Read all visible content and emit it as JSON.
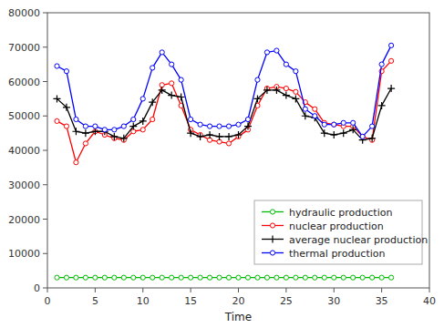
{
  "chart_data": {
    "type": "line",
    "xlabel": "Time",
    "x": [
      1,
      2,
      3,
      4,
      5,
      6,
      7,
      8,
      9,
      10,
      11,
      12,
      13,
      14,
      15,
      16,
      17,
      18,
      19,
      20,
      21,
      22,
      23,
      24,
      25,
      26,
      27,
      28,
      29,
      30,
      31,
      32,
      33,
      34,
      35,
      36
    ],
    "series": [
      {
        "name": "hydraulic production",
        "color": "#00bb00",
        "marker": "circle",
        "values": [
          3000,
          3000,
          3000,
          3000,
          3000,
          3000,
          3000,
          3000,
          3000,
          3000,
          3000,
          3000,
          3000,
          3000,
          3000,
          3000,
          3000,
          3000,
          3000,
          3000,
          3000,
          3000,
          3000,
          3000,
          3000,
          3000,
          3000,
          3000,
          3000,
          3000,
          3000,
          3000,
          3000,
          3000,
          3000,
          3000
        ]
      },
      {
        "name": "nuclear production",
        "color": "#ff0000",
        "marker": "circle",
        "values": [
          48500,
          47000,
          36500,
          42000,
          45500,
          44500,
          43500,
          43000,
          45500,
          46000,
          49000,
          59000,
          59500,
          53000,
          46000,
          44500,
          43000,
          42500,
          42000,
          44000,
          46000,
          53000,
          58000,
          58500,
          58000,
          57000,
          54000,
          52000,
          48000,
          47500,
          47000,
          47000,
          44000,
          43000,
          63000,
          66000
        ]
      },
      {
        "name": "average nuclear production",
        "color": "#000000",
        "marker": "plus",
        "values": [
          55000,
          52500,
          45500,
          45000,
          45500,
          45500,
          44000,
          43500,
          47000,
          48500,
          54000,
          57500,
          56000,
          55500,
          45000,
          44000,
          44500,
          44000,
          44000,
          44500,
          47000,
          55000,
          57500,
          57500,
          56000,
          55000,
          50000,
          49500,
          45000,
          44500,
          45000,
          46000,
          43000,
          43500,
          53000,
          58000
        ]
      },
      {
        "name": "thermal production",
        "color": "#0000ff",
        "marker": "circle",
        "values": [
          64500,
          63000,
          49000,
          47000,
          47000,
          46000,
          46000,
          47000,
          49000,
          55000,
          64000,
          68500,
          65000,
          60500,
          49000,
          47500,
          47000,
          47000,
          47000,
          47500,
          49000,
          60500,
          68500,
          69000,
          65000,
          63000,
          52000,
          50000,
          47500,
          47500,
          48000,
          48000,
          44000,
          47000,
          65000,
          70500
        ]
      }
    ],
    "xlim": [
      0,
      40
    ],
    "ylim": [
      0,
      80000
    ],
    "xticks": [
      0,
      5,
      10,
      15,
      20,
      25,
      30,
      35,
      40
    ],
    "yticks": [
      0,
      10000,
      20000,
      30000,
      40000,
      50000,
      60000,
      70000,
      80000
    ],
    "grid": false,
    "legend": "lower right"
  }
}
